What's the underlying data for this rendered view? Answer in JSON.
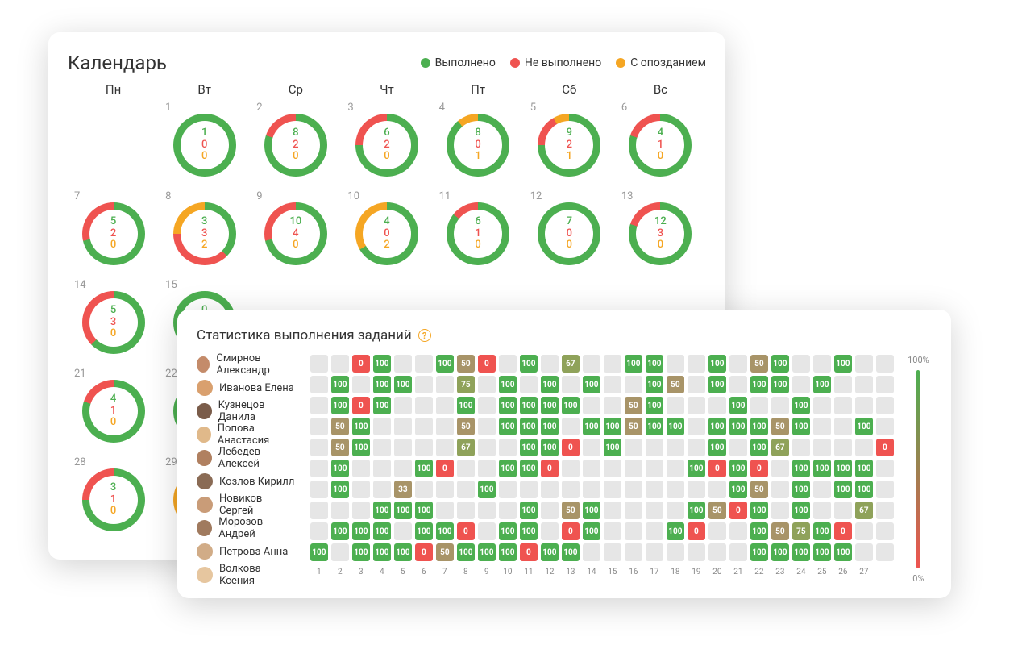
{
  "colors": {
    "done": "#4caf50",
    "not_done": "#ef5350",
    "late": "#f5a623",
    "empty": "#e6e6e6",
    "text_dark": "#333333",
    "text_muted": "#999999",
    "help": "#f5a623"
  },
  "calendar": {
    "title": "Календарь",
    "legend": [
      {
        "label": "Выполнено",
        "color": "#4caf50"
      },
      {
        "label": "Не выполнено",
        "color": "#ef5350"
      },
      {
        "label": "С опозданием",
        "color": "#f5a623"
      }
    ],
    "dow": [
      "Пн",
      "Вт",
      "Ср",
      "Чт",
      "Пт",
      "Сб",
      "Вс"
    ],
    "donut": {
      "size": 78,
      "thickness": 9
    },
    "first_weekday_offset": 1,
    "days": [
      {
        "n": 1,
        "done": 1,
        "not": 0,
        "late": 0
      },
      {
        "n": 2,
        "done": 8,
        "not": 2,
        "late": 0
      },
      {
        "n": 3,
        "done": 6,
        "not": 2,
        "late": 0
      },
      {
        "n": 4,
        "done": 8,
        "not": 0,
        "late": 1
      },
      {
        "n": 5,
        "done": 9,
        "not": 2,
        "late": 1
      },
      {
        "n": 6,
        "done": 4,
        "not": 1,
        "late": 0
      },
      {
        "n": 7,
        "done": 5,
        "not": 2,
        "late": 0
      },
      {
        "n": 8,
        "done": 3,
        "not": 3,
        "late": 2
      },
      {
        "n": 9,
        "done": 10,
        "not": 4,
        "late": 0
      },
      {
        "n": 10,
        "done": 4,
        "not": 0,
        "late": 2
      },
      {
        "n": 11,
        "done": 6,
        "not": 1,
        "late": 0
      },
      {
        "n": 12,
        "done": 7,
        "not": 0,
        "late": 0
      },
      {
        "n": 13,
        "done": 12,
        "not": 3,
        "late": 0
      },
      {
        "n": 14,
        "done": 5,
        "not": 3,
        "late": 0
      },
      {
        "n": 15,
        "done": 0,
        "not": 0,
        "late": 0
      },
      {
        "n": 21,
        "done": 4,
        "not": 1,
        "late": 0
      },
      {
        "n": 22,
        "done": 0,
        "not": 0,
        "late": 0
      },
      {
        "n": 28,
        "done": 3,
        "not": 1,
        "late": 0
      },
      {
        "n": 29,
        "done": 0,
        "not": 0,
        "late": 1
      }
    ]
  },
  "stats": {
    "title": "Статистика выполнения заданий",
    "columns": 28,
    "axis": [
      1,
      2,
      3,
      4,
      5,
      6,
      7,
      8,
      9,
      10,
      11,
      12,
      13,
      14,
      15,
      16,
      17,
      18,
      19,
      20,
      21,
      22,
      23,
      24,
      25,
      26,
      27,
      ""
    ],
    "scale": {
      "top": "100%",
      "bottom": "0%",
      "grad_top": "#4caf50",
      "grad_bottom": "#ef5350"
    },
    "empty_color": "#e6e6e6",
    "value_colors": {
      "0": "#ef5350",
      "33": "#a89468",
      "50": "#a89468",
      "67": "#8fa25a",
      "75": "#8fa25a",
      "100": "#4caf50"
    },
    "avatar_palette": [
      "#c48b6a",
      "#d9a06e",
      "#7a5c4a",
      "#e0b98a",
      "#b08060",
      "#8a6b55",
      "#c99c78",
      "#a07a5e",
      "#d1ac87",
      "#e6c69f"
    ],
    "people": [
      {
        "name": "Смирнов Александр",
        "cells": [
          null,
          null,
          0,
          100,
          null,
          null,
          100,
          50,
          0,
          null,
          100,
          null,
          67,
          null,
          null,
          100,
          100,
          null,
          null,
          100,
          null,
          50,
          100,
          null,
          null,
          100,
          null,
          null
        ]
      },
      {
        "name": "Иванова Елена",
        "cells": [
          null,
          100,
          null,
          100,
          100,
          null,
          null,
          75,
          null,
          100,
          null,
          100,
          null,
          100,
          null,
          null,
          100,
          50,
          null,
          100,
          null,
          100,
          100,
          null,
          100,
          null,
          null,
          null
        ]
      },
      {
        "name": "Кузнецов Данила",
        "cells": [
          null,
          100,
          0,
          100,
          null,
          null,
          null,
          100,
          null,
          100,
          100,
          100,
          100,
          null,
          null,
          50,
          100,
          null,
          null,
          null,
          100,
          null,
          null,
          100,
          null,
          null,
          null,
          null
        ]
      },
      {
        "name": "Попова Анастасия",
        "cells": [
          null,
          50,
          100,
          null,
          null,
          null,
          null,
          50,
          null,
          100,
          100,
          100,
          null,
          100,
          100,
          50,
          100,
          100,
          null,
          100,
          100,
          100,
          50,
          100,
          null,
          null,
          100,
          null
        ]
      },
      {
        "name": "Лебедев Алексей",
        "cells": [
          null,
          50,
          100,
          null,
          null,
          null,
          null,
          67,
          null,
          null,
          100,
          100,
          0,
          null,
          100,
          null,
          null,
          null,
          null,
          100,
          null,
          100,
          67,
          null,
          null,
          null,
          null,
          0
        ]
      },
      {
        "name": "Козлов Кирилл",
        "cells": [
          null,
          100,
          null,
          null,
          null,
          100,
          0,
          null,
          null,
          100,
          100,
          0,
          null,
          null,
          null,
          null,
          null,
          null,
          100,
          0,
          100,
          0,
          null,
          100,
          100,
          100,
          100,
          null
        ]
      },
      {
        "name": "Новиков Сергей",
        "cells": [
          null,
          100,
          null,
          null,
          33,
          null,
          null,
          null,
          100,
          null,
          null,
          null,
          null,
          null,
          null,
          null,
          null,
          null,
          null,
          null,
          100,
          50,
          null,
          100,
          null,
          100,
          100,
          null
        ]
      },
      {
        "name": "Морозов Андрей",
        "cells": [
          null,
          null,
          null,
          100,
          100,
          100,
          null,
          null,
          null,
          null,
          100,
          null,
          50,
          100,
          null,
          null,
          null,
          null,
          100,
          50,
          0,
          100,
          null,
          100,
          null,
          null,
          67,
          null
        ]
      },
      {
        "name": "Петрова Анна",
        "cells": [
          null,
          100,
          100,
          100,
          null,
          100,
          100,
          0,
          null,
          100,
          100,
          null,
          0,
          100,
          null,
          null,
          null,
          100,
          0,
          null,
          null,
          100,
          50,
          75,
          100,
          0,
          null,
          null
        ]
      },
      {
        "name": "Волкова Ксения",
        "cells": [
          100,
          null,
          100,
          100,
          100,
          0,
          50,
          100,
          100,
          100,
          0,
          100,
          100,
          null,
          null,
          null,
          null,
          null,
          null,
          null,
          null,
          100,
          100,
          100,
          100,
          100,
          null,
          null
        ]
      }
    ]
  }
}
